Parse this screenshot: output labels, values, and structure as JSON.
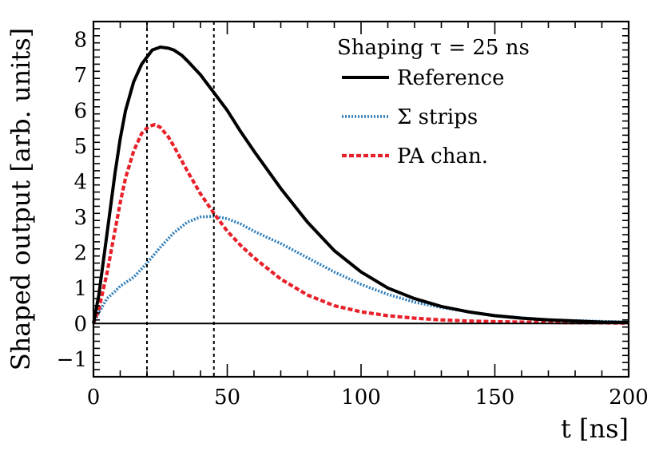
{
  "chart_data": {
    "type": "line",
    "title": "",
    "xlabel": "t [ns]",
    "ylabel": "Shaped output [arb. units]",
    "xlim": [
      0,
      200
    ],
    "ylim": [
      -1.5,
      8.5
    ],
    "x_ticks": [
      0,
      50,
      100,
      150,
      200
    ],
    "x_tick_labels": [
      "0",
      "50",
      "100",
      "150",
      "200"
    ],
    "y_ticks": [
      -1,
      0,
      1,
      2,
      3,
      4,
      5,
      6,
      7,
      8
    ],
    "y_tick_labels": [
      "−1",
      "0",
      "1",
      "2",
      "3",
      "4",
      "5",
      "6",
      "7",
      "8"
    ],
    "grid": false,
    "legend": {
      "placement": "top-right",
      "header": "Shaping τ = 25 ns"
    },
    "reference_lines": {
      "horizontal_y": 0,
      "vertical_x": [
        20,
        45
      ]
    },
    "series": [
      {
        "name": "Reference",
        "color": "#000000",
        "style": "solid",
        "x": [
          0,
          2,
          5,
          8,
          10,
          12,
          15,
          18,
          20,
          22,
          25,
          28,
          30,
          33,
          35,
          40,
          45,
          50,
          55,
          60,
          70,
          80,
          90,
          100,
          110,
          120,
          130,
          140,
          150,
          160,
          170,
          180,
          190,
          200
        ],
        "y": [
          0,
          0.8,
          2.5,
          4.2,
          5.2,
          6.0,
          6.8,
          7.3,
          7.5,
          7.7,
          7.78,
          7.75,
          7.7,
          7.55,
          7.4,
          7.0,
          6.5,
          6.0,
          5.4,
          4.85,
          3.8,
          2.85,
          2.05,
          1.45,
          1.0,
          0.7,
          0.48,
          0.33,
          0.22,
          0.15,
          0.1,
          0.07,
          0.04,
          0.03
        ]
      },
      {
        "name": "Σ strips",
        "color": "#2b7bba",
        "style": "dotted",
        "x": [
          0,
          2,
          5,
          8,
          10,
          15,
          20,
          25,
          30,
          35,
          40,
          45,
          50,
          55,
          60,
          65,
          70,
          80,
          90,
          100,
          110,
          120,
          130,
          140,
          150,
          160,
          170,
          180,
          190,
          200
        ],
        "y": [
          0,
          0.3,
          0.7,
          0.9,
          1.05,
          1.3,
          1.7,
          2.15,
          2.55,
          2.85,
          3.0,
          3.02,
          2.95,
          2.8,
          2.6,
          2.42,
          2.25,
          1.85,
          1.45,
          1.1,
          0.82,
          0.6,
          0.45,
          0.33,
          0.23,
          0.16,
          0.11,
          0.08,
          0.06,
          0.04
        ]
      },
      {
        "name": "PA chan.",
        "color": "#e8202a",
        "style": "dashed",
        "x": [
          0,
          2,
          5,
          8,
          10,
          12,
          15,
          18,
          20,
          22,
          23,
          25,
          28,
          30,
          35,
          40,
          45,
          50,
          55,
          60,
          70,
          80,
          90,
          100,
          110,
          120,
          130,
          140,
          150,
          160,
          170,
          180,
          190,
          200
        ],
        "y": [
          0,
          0.4,
          1.4,
          2.6,
          3.4,
          4.1,
          4.85,
          5.35,
          5.5,
          5.58,
          5.6,
          5.52,
          5.25,
          5.0,
          4.3,
          3.65,
          3.1,
          2.6,
          2.2,
          1.85,
          1.25,
          0.8,
          0.5,
          0.33,
          0.22,
          0.15,
          0.1,
          0.07,
          0.05,
          0.04,
          0.03,
          0.02,
          0.02,
          0.01
        ]
      }
    ]
  }
}
